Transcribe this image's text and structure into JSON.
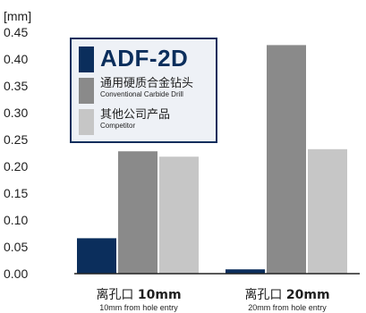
{
  "chart_data": {
    "type": "bar",
    "unit_label": "[mm]",
    "ylim": [
      0,
      0.45
    ],
    "yticks": [
      "0.00",
      "0.05",
      "0.10",
      "0.15",
      "0.20",
      "0.25",
      "0.30",
      "0.35",
      "0.40",
      "0.45"
    ],
    "grid": false,
    "legend_position": "top-left",
    "categories": [
      {
        "main": "离孔口 ",
        "num": "10mm",
        "sub": "10mm from hole entry"
      },
      {
        "main": "离孔口 ",
        "num": "20mm",
        "sub": "20mm from hole entry"
      }
    ],
    "series": [
      {
        "name": "ADF-2D",
        "subname": "",
        "color": "#0b2e5c",
        "values": [
          0.066,
          0.008
        ]
      },
      {
        "name": "通用硬质合金钻头",
        "subname": "Conventional Carbide Drill",
        "color": "#8a8a8a",
        "values": [
          0.228,
          0.426
        ]
      },
      {
        "name": "其他公司产品",
        "subname": "Competitor",
        "color": "#c6c6c6",
        "values": [
          0.218,
          0.232
        ]
      }
    ]
  }
}
